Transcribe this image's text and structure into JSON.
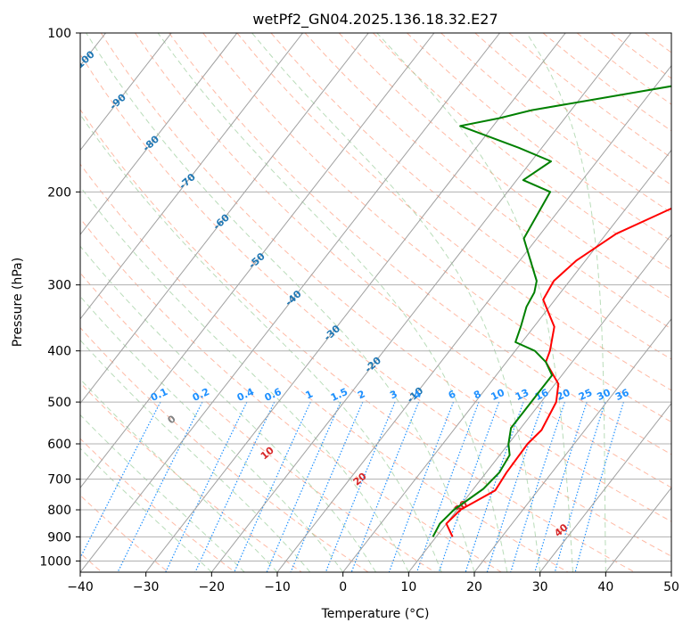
{
  "chart_data": {
    "type": "line",
    "title": "wetPf2_GN04.2025.136.18.32.E27",
    "xlabel": "Temperature (°C)",
    "ylabel": "Pressure (hPa)",
    "xlim": [
      -40,
      50
    ],
    "ylim": [
      1050,
      100
    ],
    "y_scale": "log",
    "grid": true,
    "x_ticks": [
      -40,
      -30,
      -20,
      -10,
      0,
      10,
      20,
      30,
      40,
      50
    ],
    "x_tick_labels": [
      "−40",
      "−30",
      "−20",
      "−10",
      "0",
      "10",
      "20",
      "30",
      "40",
      "50"
    ],
    "y_ticks": [
      100,
      200,
      300,
      400,
      500,
      600,
      700,
      800,
      900,
      1000
    ],
    "y_tick_labels": [
      "100",
      "200",
      "300",
      "400",
      "500",
      "600",
      "700",
      "800",
      "900",
      "1000"
    ],
    "colors": {
      "temperature": "#ff0000",
      "dewpoint": "#008000",
      "isotherm": "#a0a0a0",
      "dry_adiabat": "#ff8c69",
      "moist_adiabat": "#7fbf7f",
      "mixing_ratio": "#1e90ff",
      "isotherm_label": "#1f77b4",
      "dry_label": "#d62728",
      "dry_zero_label": "#808080"
    },
    "series": [
      {
        "role": "temperature",
        "points": [
          [
            12.5,
            900
          ],
          [
            10,
            850
          ],
          [
            10.5,
            800
          ],
          [
            13.5,
            735
          ],
          [
            13.1,
            680
          ],
          [
            12.9,
            600
          ],
          [
            13.4,
            565
          ],
          [
            12.3,
            500
          ],
          [
            10.5,
            462
          ],
          [
            6,
            420
          ],
          [
            5.3,
            400
          ],
          [
            3.1,
            360
          ],
          [
            -1.8,
            320
          ],
          [
            -2.4,
            295
          ],
          [
            -1.4,
            270
          ],
          [
            1.5,
            240
          ],
          [
            6.9,
            215
          ],
          [
            11.5,
            195
          ],
          [
            12.3,
            190
          ],
          [
            14,
            170
          ],
          [
            15.5,
            155
          ],
          [
            17,
            140
          ],
          [
            18,
            130
          ],
          [
            20.5,
            110
          ],
          [
            22.5,
            100
          ]
        ]
      },
      {
        "role": "dewpoint",
        "points": [
          [
            9.5,
            900
          ],
          [
            9.0,
            850
          ],
          [
            9.5,
            800
          ],
          [
            11.5,
            730
          ],
          [
            12.0,
            680
          ],
          [
            11.5,
            630
          ],
          [
            10.0,
            600
          ],
          [
            8.5,
            560
          ],
          [
            8.5,
            520
          ],
          [
            8.5,
            480
          ],
          [
            8.5,
            445
          ],
          [
            6.0,
            420
          ],
          [
            3.0,
            400
          ],
          [
            -1.0,
            385
          ],
          [
            -2.0,
            360
          ],
          [
            -3.5,
            330
          ],
          [
            -4.0,
            310
          ],
          [
            -5.0,
            295
          ],
          [
            -12.0,
            245
          ],
          [
            -13.5,
            200
          ],
          [
            -19.0,
            190
          ],
          [
            -17.0,
            175
          ],
          [
            -23.5,
            165
          ],
          [
            -35.0,
            150
          ],
          [
            -30.0,
            145
          ],
          [
            -26.0,
            140
          ],
          [
            -6.0,
            125
          ],
          [
            -3.0,
            120
          ],
          [
            -3.5,
            110
          ],
          [
            -1.0,
            100
          ]
        ]
      }
    ],
    "isotherm_labels": [
      "-100",
      "-90",
      "-80",
      "-70",
      "-60",
      "-50",
      "-40",
      "-30",
      "-20",
      "-10"
    ],
    "mixing_ratio_labels": [
      "0.1",
      "0.2",
      "0.4",
      "0.6",
      "1",
      "1.5",
      "2",
      "3",
      "4",
      "6",
      "8",
      "10",
      "13",
      "16",
      "20",
      "25",
      "30",
      "36"
    ],
    "dry_adiabat_labels": [
      "0",
      "10",
      "20",
      "30",
      "40"
    ]
  }
}
